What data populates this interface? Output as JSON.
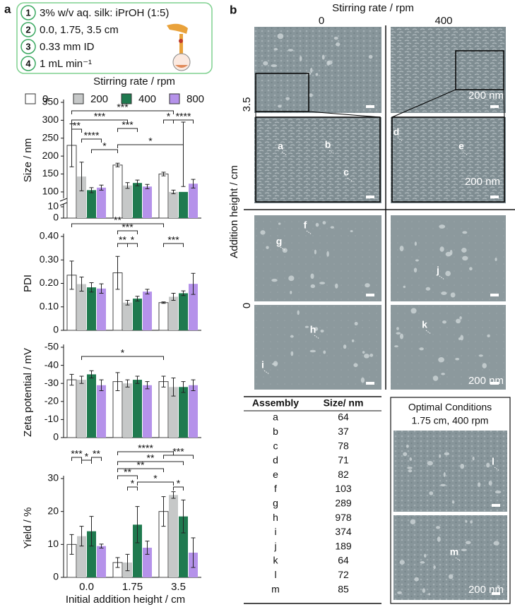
{
  "panel_a": {
    "label": "a",
    "conditions": [
      {
        "number": "1",
        "text": "3% w/v aq. silk: iPrOH (1:5)"
      },
      {
        "number": "2",
        "text": "0.0, 1.75, 3.5 cm"
      },
      {
        "number": "3",
        "text": "0.33 mm ID"
      },
      {
        "number": "4",
        "text": "1 mL min⁻¹"
      }
    ],
    "legend_title": "Stirring rate / rpm"
  },
  "chart_data": [
    {
      "type": "bar",
      "y_label": "Size / nm",
      "series": [
        {
          "name": "0",
          "color": "#ffffff",
          "values": [
            230,
            175,
            150
          ],
          "errors": [
            60,
            5,
            5
          ]
        },
        {
          "name": "200",
          "color": "#c6c8c8",
          "values": [
            143,
            118,
            100
          ],
          "errors": [
            40,
            8,
            5
          ]
        },
        {
          "name": "400",
          "color": "#1f7a4f",
          "values": [
            105,
            125,
            100
          ],
          "errors": [
            7,
            8,
            15
          ]
        },
        {
          "name": "800",
          "color": "#b592ea",
          "values": [
            112,
            115,
            123
          ],
          "errors": [
            7,
            6,
            12
          ]
        }
      ],
      "ylim": [
        90,
        350
      ],
      "yticks": [
        100,
        150,
        200,
        250,
        300,
        350
      ],
      "ylim_lower": [
        0,
        10
      ],
      "yticks_lower": [
        0,
        10
      ],
      "annotations": [
        "***",
        "**",
        "***",
        "****",
        "***",
        "*",
        "****",
        "*",
        "*"
      ]
    },
    {
      "type": "bar",
      "y_label": "PDI",
      "series": [
        {
          "color": "#ffffff",
          "values": [
            0.235,
            0.245,
            0.118
          ],
          "errors": [
            0.06,
            0.07,
            0.003
          ]
        },
        {
          "color": "#c6c8c8",
          "values": [
            0.197,
            0.118,
            0.143
          ],
          "errors": [
            0.03,
            0.01,
            0.015
          ]
        },
        {
          "color": "#1f7a4f",
          "values": [
            0.183,
            0.135,
            0.158
          ],
          "errors": [
            0.02,
            0.01,
            0.01
          ]
        },
        {
          "color": "#b592ea",
          "values": [
            0.178,
            0.165,
            0.198
          ],
          "errors": [
            0.02,
            0.01,
            0.045
          ]
        }
      ],
      "ylim": [
        0,
        0.4
      ],
      "yticks": [
        0,
        {
          "value": 0.1,
          "label": "0.10"
        },
        {
          "value": 0.2,
          "label": "0.20"
        },
        {
          "value": 0.3,
          "label": "0.30"
        },
        {
          "value": 0.4,
          "label": "0.40"
        }
      ],
      "annotations": [
        "**",
        "***",
        "**",
        "*",
        "***"
      ]
    },
    {
      "type": "bar",
      "y_label": "Zeta potential / mV",
      "series": [
        {
          "color": "#ffffff",
          "values": [
            -32,
            -31,
            -31
          ],
          "errors": [
            3,
            5,
            3
          ]
        },
        {
          "color": "#c6c8c8",
          "values": [
            -32,
            -30,
            -28
          ],
          "errors": [
            2,
            2,
            5
          ]
        },
        {
          "color": "#1f7a4f",
          "values": [
            -35,
            -32,
            -28
          ],
          "errors": [
            2,
            2,
            3
          ]
        },
        {
          "color": "#b592ea",
          "values": [
            -29,
            -29,
            -29
          ],
          "errors": [
            3,
            2,
            3
          ]
        }
      ],
      "ylim": [
        0,
        -50
      ],
      "yticks": [
        0,
        -10,
        -20,
        -30,
        -40,
        -50
      ],
      "annotations": [
        "*"
      ]
    },
    {
      "type": "bar",
      "y_label": "Yield / %",
      "x_label": "Initial addition height / cm",
      "categories": [
        "0.0",
        "1.75",
        "3.5"
      ],
      "series": [
        {
          "color": "#ffffff",
          "values": [
            10,
            4.5,
            20
          ],
          "errors": [
            3,
            1.5,
            4.5
          ]
        },
        {
          "color": "#c6c8c8",
          "values": [
            12.5,
            4.5,
            25
          ],
          "errors": [
            3,
            2.5,
            1
          ]
        },
        {
          "color": "#1f7a4f",
          "values": [
            14,
            16,
            18.5
          ],
          "errors": [
            4.5,
            5.5,
            5
          ]
        },
        {
          "color": "#b592ea",
          "values": [
            9.5,
            9,
            7.5
          ],
          "errors": [
            0.6,
            2,
            4.5
          ]
        }
      ],
      "ylim": [
        0,
        30
      ],
      "yticks": [
        0,
        10,
        20,
        30
      ],
      "annotations": [
        "***",
        "*",
        "**",
        "****",
        "**",
        "**",
        "**",
        "*",
        "*",
        "*",
        "***"
      ]
    }
  ],
  "panel_b": {
    "label": "b",
    "column_title": "Stirring rate / rpm",
    "columns": [
      "0",
      "400"
    ],
    "row_title": "Addition height / cm",
    "rows": [
      "3.5",
      "0"
    ],
    "scale_bar": "200 nm",
    "table": {
      "headers": [
        "Assembly",
        "Size/ nm"
      ],
      "rows": [
        [
          "a",
          64
        ],
        [
          "b",
          37
        ],
        [
          "c",
          78
        ],
        [
          "d",
          71
        ],
        [
          "e",
          82
        ],
        [
          "f",
          103
        ],
        [
          "g",
          289
        ],
        [
          "h",
          978
        ],
        [
          "i",
          374
        ],
        [
          "j",
          189
        ],
        [
          "k",
          64
        ],
        [
          "l",
          72
        ],
        [
          "m",
          85
        ]
      ]
    },
    "optimal_title": "Optimal Conditions",
    "optimal_subtitle": "1.75 cm, 400 rpm"
  }
}
